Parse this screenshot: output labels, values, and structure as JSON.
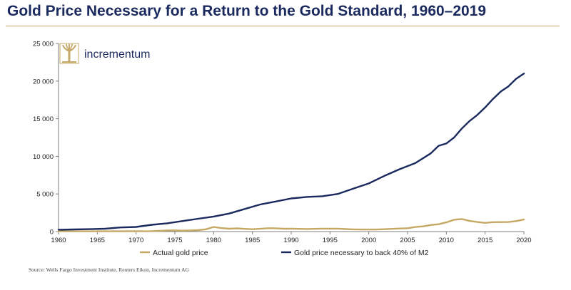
{
  "title": "Gold Price Necessary for a Return to the Gold Standard, 1960–2019",
  "logo": {
    "text": "incrementum"
  },
  "source": "Source: Wells Fargo Investment Institute, Reuters Eikon, Incrementum AG",
  "colors": {
    "navy": "#1b2a5e",
    "gold": "#c6a866",
    "rule": "#c9a96a"
  },
  "chart_data": {
    "type": "line",
    "title": "Gold Price Necessary for a Return to the Gold Standard, 1960–2019",
    "xlim": [
      1960,
      2020
    ],
    "ylim": [
      0,
      25000
    ],
    "x_ticks": [
      1960,
      1965,
      1970,
      1975,
      1980,
      1985,
      1990,
      1995,
      2000,
      2005,
      2010,
      2015,
      2020
    ],
    "y_ticks": [
      0,
      5000,
      10000,
      15000,
      20000,
      25000
    ],
    "y_tick_labels": [
      "0",
      "5 000",
      "10 000",
      "15 000",
      "20 000",
      "25 000"
    ],
    "grid": false,
    "legend_position": "bottom",
    "series": [
      {
        "name": "Actual gold price",
        "color": "#c6a866",
        "x": [
          1960,
          1962,
          1964,
          1966,
          1968,
          1970,
          1972,
          1973,
          1974,
          1975,
          1976,
          1977,
          1978,
          1979,
          1980,
          1981,
          1982,
          1983,
          1984,
          1985,
          1986,
          1987,
          1988,
          1989,
          1990,
          1991,
          1992,
          1993,
          1994,
          1995,
          1996,
          1997,
          1998,
          1999,
          2000,
          2001,
          2002,
          2003,
          2004,
          2005,
          2006,
          2007,
          2008,
          2009,
          2010,
          2011,
          2012,
          2013,
          2014,
          2015,
          2016,
          2017,
          2018,
          2019,
          2020
        ],
        "values": [
          35,
          35,
          35,
          35,
          39,
          36,
          58,
          97,
          154,
          161,
          125,
          148,
          193,
          306,
          615,
          460,
          376,
          424,
          361,
          317,
          368,
          447,
          437,
          381,
          384,
          362,
          344,
          360,
          384,
          384,
          388,
          331,
          294,
          279,
          279,
          271,
          310,
          363,
          409,
          444,
          604,
          695,
          872,
          972,
          1225,
          1572,
          1669,
          1411,
          1266,
          1160,
          1250,
          1257,
          1268,
          1393,
          1600
        ]
      },
      {
        "name": "Gold price necessary to back 40% of M2",
        "color": "#1b2a5e",
        "x": [
          1960,
          1962,
          1964,
          1966,
          1968,
          1970,
          1972,
          1974,
          1976,
          1978,
          1980,
          1982,
          1984,
          1986,
          1988,
          1990,
          1992,
          1994,
          1996,
          1998,
          2000,
          2002,
          2004,
          2006,
          2008,
          2009,
          2010,
          2011,
          2012,
          2013,
          2014,
          2015,
          2016,
          2017,
          2018,
          2019,
          2020
        ],
        "values": [
          250,
          280,
          320,
          380,
          550,
          620,
          900,
          1100,
          1400,
          1700,
          2000,
          2400,
          3000,
          3600,
          4000,
          4400,
          4600,
          4700,
          5000,
          5700,
          6400,
          7400,
          8300,
          9100,
          10400,
          11400,
          11700,
          12500,
          13700,
          14700,
          15500,
          16500,
          17600,
          18600,
          19300,
          20300,
          21000
        ]
      }
    ]
  }
}
